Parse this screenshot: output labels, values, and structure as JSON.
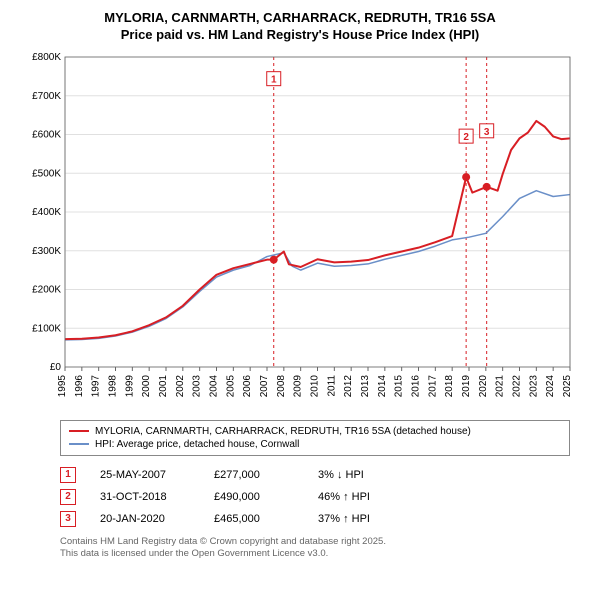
{
  "title_line1": "MYLORIA, CARNMARTH, CARHARRACK, REDRUTH, TR16 5SA",
  "title_line2": "Price paid vs. HM Land Registry's House Price Index (HPI)",
  "title_fontsize": 13,
  "chart": {
    "type": "line",
    "x_start_year": 1995,
    "x_end_year": 2025,
    "x_tick_years": [
      1995,
      1996,
      1997,
      1998,
      1999,
      2000,
      2001,
      2002,
      2003,
      2004,
      2005,
      2006,
      2007,
      2008,
      2009,
      2010,
      2011,
      2012,
      2013,
      2014,
      2015,
      2016,
      2017,
      2018,
      2019,
      2020,
      2021,
      2022,
      2023,
      2024,
      2025
    ],
    "y_min": 0,
    "y_max": 800,
    "y_tick_step": 100,
    "y_tick_labels": [
      "£0",
      "£100K",
      "£200K",
      "£300K",
      "£400K",
      "£500K",
      "£600K",
      "£700K",
      "£800K"
    ],
    "background_color": "#ffffff",
    "grid_color": "#e0e0e0",
    "axis_color": "#666666",
    "series": [
      {
        "name": "property",
        "label": "MYLORIA, CARNMARTH, CARHARRACK, REDRUTH, TR16 5SA (detached house)",
        "color": "#d81e24",
        "line_width": 2,
        "points": [
          [
            1995,
            72
          ],
          [
            1996,
            73
          ],
          [
            1997,
            76
          ],
          [
            1998,
            82
          ],
          [
            1999,
            92
          ],
          [
            2000,
            108
          ],
          [
            2001,
            128
          ],
          [
            2002,
            158
          ],
          [
            2003,
            200
          ],
          [
            2004,
            238
          ],
          [
            2005,
            255
          ],
          [
            2006,
            266
          ],
          [
            2007,
            277
          ],
          [
            2007.4,
            277
          ],
          [
            2008,
            298
          ],
          [
            2008.3,
            265
          ],
          [
            2009,
            258
          ],
          [
            2010,
            278
          ],
          [
            2011,
            270
          ],
          [
            2012,
            272
          ],
          [
            2013,
            276
          ],
          [
            2014,
            288
          ],
          [
            2015,
            298
          ],
          [
            2016,
            308
          ],
          [
            2017,
            322
          ],
          [
            2018,
            338
          ],
          [
            2018.83,
            490
          ],
          [
            2019.2,
            450
          ],
          [
            2020.05,
            465
          ],
          [
            2020.7,
            455
          ],
          [
            2021,
            498
          ],
          [
            2021.5,
            560
          ],
          [
            2022,
            590
          ],
          [
            2022.5,
            605
          ],
          [
            2023,
            635
          ],
          [
            2023.5,
            620
          ],
          [
            2024,
            595
          ],
          [
            2024.5,
            588
          ],
          [
            2025,
            590
          ]
        ]
      },
      {
        "name": "hpi",
        "label": "HPI: Average price, detached house, Cornwall",
        "color": "#6a8fc8",
        "line_width": 1.5,
        "points": [
          [
            1995,
            70
          ],
          [
            1996,
            71
          ],
          [
            1997,
            74
          ],
          [
            1998,
            80
          ],
          [
            1999,
            90
          ],
          [
            2000,
            105
          ],
          [
            2001,
            125
          ],
          [
            2002,
            155
          ],
          [
            2003,
            195
          ],
          [
            2004,
            232
          ],
          [
            2005,
            250
          ],
          [
            2006,
            262
          ],
          [
            2007,
            285
          ],
          [
            2008,
            295
          ],
          [
            2008.5,
            260
          ],
          [
            2009,
            250
          ],
          [
            2010,
            268
          ],
          [
            2011,
            260
          ],
          [
            2012,
            262
          ],
          [
            2013,
            266
          ],
          [
            2014,
            278
          ],
          [
            2015,
            288
          ],
          [
            2016,
            298
          ],
          [
            2017,
            312
          ],
          [
            2018,
            328
          ],
          [
            2019,
            335
          ],
          [
            2020,
            345
          ],
          [
            2021,
            388
          ],
          [
            2022,
            435
          ],
          [
            2023,
            455
          ],
          [
            2024,
            440
          ],
          [
            2025,
            445
          ]
        ]
      }
    ],
    "callout_lines": [
      {
        "x": 2007.4,
        "color": "#d81e24",
        "marker_y": 277,
        "label": "1",
        "label_y_offset": -180
      },
      {
        "x": 2018.83,
        "color": "#d81e24",
        "marker_y": 490,
        "label": "2",
        "label_y_offset": -40
      },
      {
        "x": 2020.05,
        "color": "#d81e24",
        "marker_y": 465,
        "label": "3",
        "label_y_offset": -55
      }
    ]
  },
  "legend": [
    {
      "color": "#d81e24",
      "label": "MYLORIA, CARNMARTH, CARHARRACK, REDRUTH, TR16 5SA (detached house)"
    },
    {
      "color": "#6a8fc8",
      "label": "HPI: Average price, detached house, Cornwall"
    }
  ],
  "callouts": [
    {
      "n": "1",
      "color": "#d81e24",
      "date": "25-MAY-2007",
      "price": "£277,000",
      "delta": "3% ↓ HPI"
    },
    {
      "n": "2",
      "color": "#d81e24",
      "date": "31-OCT-2018",
      "price": "£490,000",
      "delta": "46% ↑ HPI"
    },
    {
      "n": "3",
      "color": "#d81e24",
      "date": "20-JAN-2020",
      "price": "£465,000",
      "delta": "37% ↑ HPI"
    }
  ],
  "attribution_line1": "Contains HM Land Registry data © Crown copyright and database right 2025.",
  "attribution_line2": "This data is licensed under the Open Government Licence v3.0."
}
